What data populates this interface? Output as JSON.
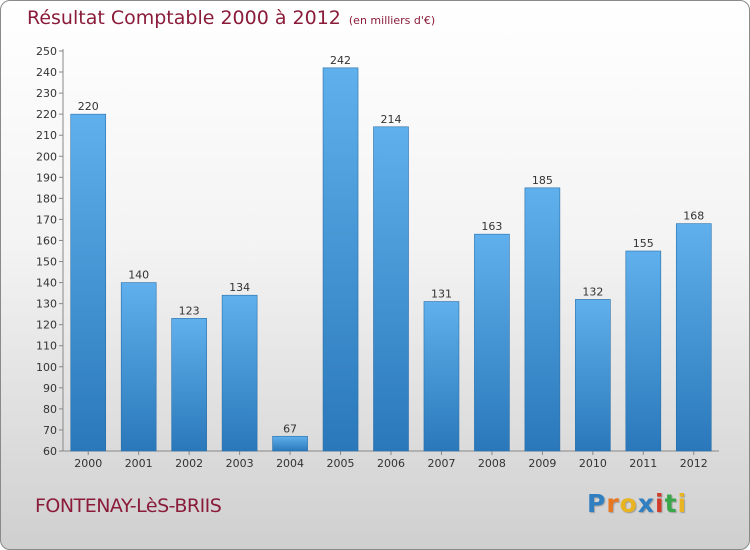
{
  "title": "Résultat Comptable 2000 à 2012",
  "subtitle": "(en milliers d'€)",
  "commune": "FONTENAY-LèS-BRIIS",
  "logo": {
    "text": "Proxiti",
    "letters": [
      "P",
      "r",
      "o",
      "x",
      "i",
      "t",
      "i"
    ],
    "colors": [
      "#2f7fc1",
      "#e87722",
      "#e8b422",
      "#2f7fc1",
      "#d23a2a",
      "#3aa64a",
      "#e8b422"
    ]
  },
  "chart_data": {
    "type": "bar",
    "categories": [
      "2000",
      "2001",
      "2002",
      "2003",
      "2004",
      "2005",
      "2006",
      "2007",
      "2008",
      "2009",
      "2010",
      "2011",
      "2012"
    ],
    "values": [
      220,
      140,
      123,
      134,
      67,
      242,
      214,
      131,
      163,
      185,
      132,
      155,
      168
    ],
    "ylim": [
      60,
      250
    ],
    "yticks": [
      60,
      70,
      80,
      90,
      100,
      110,
      120,
      130,
      140,
      150,
      160,
      170,
      180,
      190,
      200,
      210,
      220,
      230,
      240,
      250
    ],
    "grid": false,
    "bar_color": "#3b92d6"
  }
}
